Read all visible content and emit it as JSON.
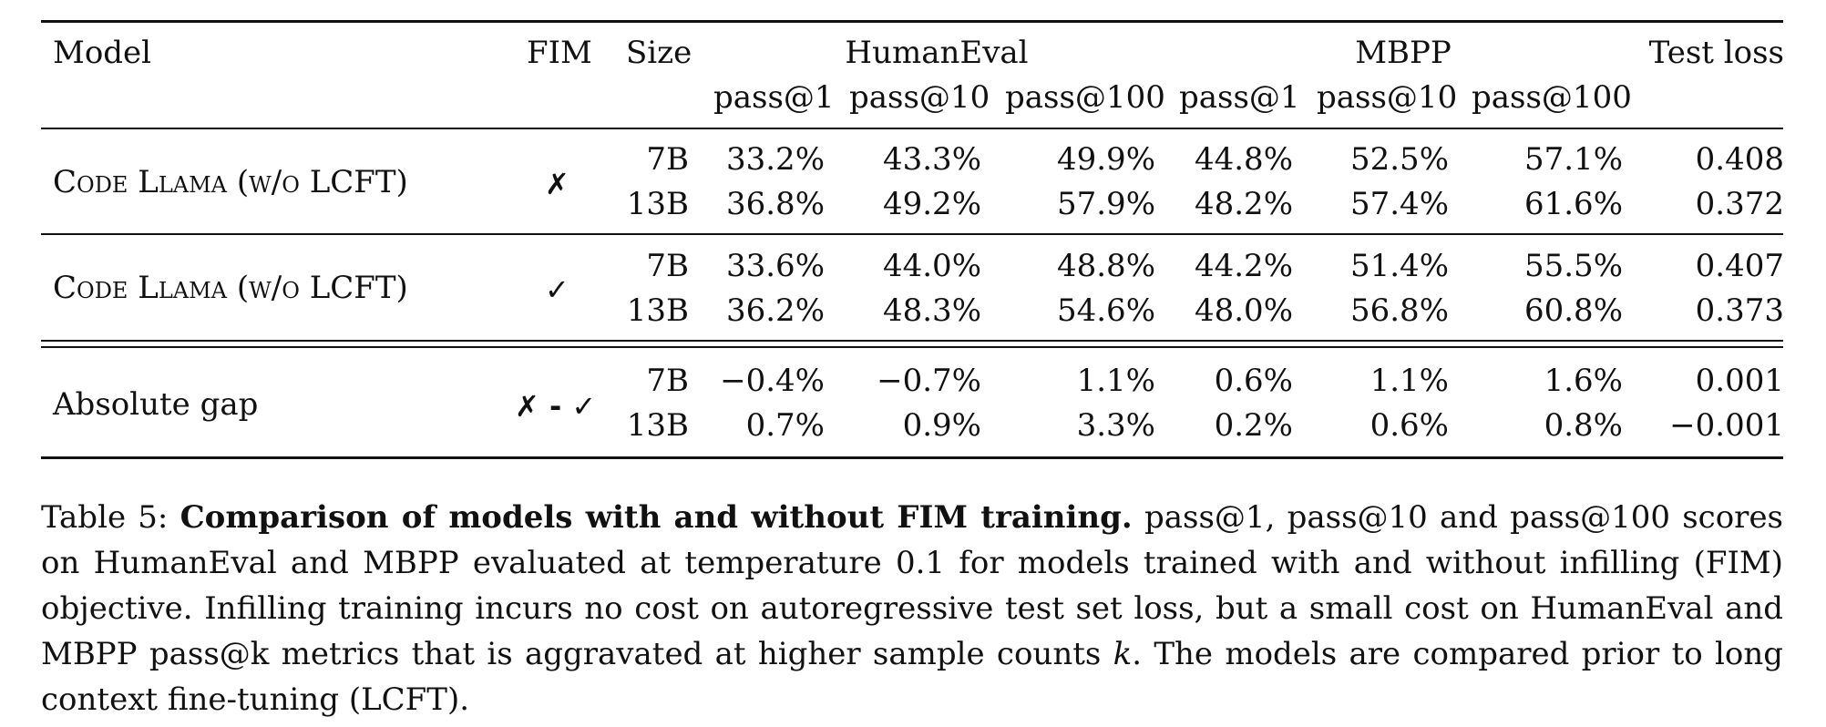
{
  "table": {
    "headers": {
      "model": "Model",
      "fim": "FIM",
      "size": "Size",
      "group_humaneval": "HumanEval",
      "group_mbpp": "MBPP",
      "test_loss": "Test loss",
      "pass1": "pass@1",
      "pass10": "pass@10",
      "pass100": "pass@100"
    },
    "groups": [
      {
        "model": "Code Llama (w/o LCFT)",
        "fim_icon": "cross-icon",
        "fim": "✗",
        "rows": [
          {
            "size": "7B",
            "he1": "33.2%",
            "he10": "43.3%",
            "he100": "49.9%",
            "mb1": "44.8%",
            "mb10": "52.5%",
            "mb100": "57.1%",
            "loss": "0.408"
          },
          {
            "size": "13B",
            "he1": "36.8%",
            "he10": "49.2%",
            "he100": "57.9%",
            "mb1": "48.2%",
            "mb10": "57.4%",
            "mb100": "61.6%",
            "loss": "0.372"
          }
        ]
      },
      {
        "model": "Code Llama (w/o LCFT)",
        "fim_icon": "check-icon",
        "fim": "✓",
        "rows": [
          {
            "size": "7B",
            "he1": "33.6%",
            "he10": "44.0%",
            "he100": "48.8%",
            "mb1": "44.2%",
            "mb10": "51.4%",
            "mb100": "55.5%",
            "loss": "0.407"
          },
          {
            "size": "13B",
            "he1": "36.2%",
            "he10": "48.3%",
            "he100": "54.6%",
            "mb1": "48.0%",
            "mb10": "56.8%",
            "mb100": "60.8%",
            "loss": "0.373"
          }
        ]
      },
      {
        "model": "Absolute gap",
        "fim_icon": "cross-minus-check-icon",
        "fim": "✗ - ✓",
        "rows": [
          {
            "size": "7B",
            "he1": "−0.4%",
            "he10": "−0.7%",
            "he100": "1.1%",
            "mb1": "0.6%",
            "mb10": "1.1%",
            "mb100": "1.6%",
            "loss": "0.001"
          },
          {
            "size": "13B",
            "he1": "0.7%",
            "he10": "0.9%",
            "he100": "3.3%",
            "mb1": "0.2%",
            "mb10": "0.6%",
            "mb100": "0.8%",
            "loss": "−0.001"
          }
        ]
      }
    ]
  },
  "caption": {
    "label": "Table 5:",
    "title": "Comparison of models with and without FIM training.",
    "body_1": "pass@1, pass@10 and pass@100 scores on HumanEval and MBPP evaluated at temperature 0.1 for models trained with and without infilling (FIM) objective. Infilling training incurs no cost on autoregressive test set loss, but a small cost on HumanEval and MBPP pass@k metrics that is aggravated at higher sample counts",
    "k": "k",
    "body_2": ". The models are compared prior to long context fine-tuning (LCFT)."
  }
}
